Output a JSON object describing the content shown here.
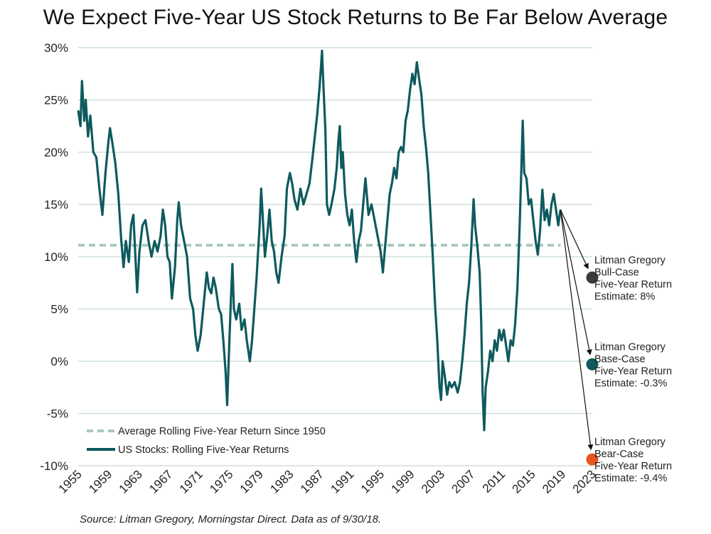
{
  "title": "We Expect Five-Year US Stock Returns to Be Far Below Average",
  "source": "Source: Litman Gregory, Morningstar Direct. Data as of 9/30/18.",
  "legend": {
    "average": "Average Rolling Five-Year Return Since 1950",
    "series": "US Stocks: Rolling Five-Year Returns"
  },
  "colors": {
    "line": "#0e5a5e",
    "average": "#a9c9bf",
    "grid": "#cfe0da",
    "bull": "#3b3b3b",
    "base": "#0e5a5e",
    "bear": "#e8531f"
  },
  "chart_data": {
    "type": "line",
    "title": "We Expect Five-Year US Stock Returns to Be Far Below Average",
    "xlabel": "",
    "ylabel": "",
    "ylim": [
      -10,
      30
    ],
    "xlim": [
      1955,
      2023
    ],
    "x_ticks": [
      "1955",
      "1959",
      "1963",
      "1967",
      "1971",
      "1975",
      "1979",
      "1983",
      "1987",
      "1991",
      "1995",
      "1999",
      "2003",
      "2007",
      "2011",
      "2015",
      "2019",
      "2023"
    ],
    "y_ticks": [
      "-10%",
      "-5%",
      "0%",
      "5%",
      "10%",
      "15%",
      "20%",
      "25%",
      "30%"
    ],
    "grid": "horizontal",
    "legend_position": "bottom-left",
    "average_line": {
      "name": "Average Rolling Five-Year Return Since 1950",
      "value": 11.1,
      "x_range": [
        1955,
        2018.8
      ]
    },
    "series": [
      {
        "name": "US Stocks: Rolling Five-Year Returns",
        "points": [
          [
            1955.0,
            24.0
          ],
          [
            1955.3,
            22.5
          ],
          [
            1955.5,
            26.8
          ],
          [
            1955.8,
            23.0
          ],
          [
            1956.0,
            25.0
          ],
          [
            1956.3,
            21.5
          ],
          [
            1956.6,
            23.5
          ],
          [
            1957.0,
            20.0
          ],
          [
            1957.4,
            19.5
          ],
          [
            1957.8,
            16.5
          ],
          [
            1958.2,
            14.0
          ],
          [
            1958.6,
            18.0
          ],
          [
            1959.0,
            21.0
          ],
          [
            1959.2,
            22.3
          ],
          [
            1959.5,
            21.0
          ],
          [
            1959.9,
            19.0
          ],
          [
            1960.3,
            16.0
          ],
          [
            1960.7,
            11.5
          ],
          [
            1961.0,
            9.0
          ],
          [
            1961.3,
            11.5
          ],
          [
            1961.7,
            9.5
          ],
          [
            1962.0,
            13.0
          ],
          [
            1962.3,
            14.0
          ],
          [
            1962.5,
            11.0
          ],
          [
            1962.8,
            6.6
          ],
          [
            1963.1,
            10.5
          ],
          [
            1963.5,
            13.0
          ],
          [
            1963.9,
            13.5
          ],
          [
            1964.3,
            11.5
          ],
          [
            1964.7,
            10.0
          ],
          [
            1965.1,
            11.5
          ],
          [
            1965.5,
            10.5
          ],
          [
            1965.9,
            12.0
          ],
          [
            1966.2,
            14.5
          ],
          [
            1966.5,
            13.0
          ],
          [
            1966.8,
            10.0
          ],
          [
            1967.1,
            9.5
          ],
          [
            1967.4,
            6.0
          ],
          [
            1967.8,
            9.0
          ],
          [
            1968.1,
            13.5
          ],
          [
            1968.3,
            15.2
          ],
          [
            1968.6,
            13.0
          ],
          [
            1969.0,
            11.5
          ],
          [
            1969.4,
            10.0
          ],
          [
            1969.8,
            6.0
          ],
          [
            1970.2,
            5.0
          ],
          [
            1970.5,
            2.5
          ],
          [
            1970.8,
            1.0
          ],
          [
            1971.2,
            2.5
          ],
          [
            1971.6,
            5.5
          ],
          [
            1972.0,
            8.5
          ],
          [
            1972.3,
            7.0
          ],
          [
            1972.6,
            6.5
          ],
          [
            1972.9,
            8.0
          ],
          [
            1973.2,
            7.0
          ],
          [
            1973.6,
            5.0
          ],
          [
            1973.9,
            4.5
          ],
          [
            1974.2,
            2.0
          ],
          [
            1974.5,
            -1.0
          ],
          [
            1974.7,
            -4.2
          ],
          [
            1974.9,
            0.0
          ],
          [
            1975.2,
            6.0
          ],
          [
            1975.4,
            9.3
          ],
          [
            1975.6,
            5.0
          ],
          [
            1975.9,
            4.0
          ],
          [
            1976.3,
            5.5
          ],
          [
            1976.6,
            3.0
          ],
          [
            1977.0,
            4.0
          ],
          [
            1977.3,
            2.0
          ],
          [
            1977.7,
            0.0
          ],
          [
            1978.0,
            2.0
          ],
          [
            1978.3,
            5.0
          ],
          [
            1978.6,
            8.0
          ],
          [
            1978.8,
            10.5
          ],
          [
            1979.0,
            13.0
          ],
          [
            1979.2,
            16.5
          ],
          [
            1979.4,
            14.0
          ],
          [
            1979.7,
            10.0
          ],
          [
            1980.0,
            12.0
          ],
          [
            1980.3,
            14.5
          ],
          [
            1980.6,
            11.5
          ],
          [
            1980.9,
            10.5
          ],
          [
            1981.2,
            8.5
          ],
          [
            1981.5,
            7.5
          ],
          [
            1981.9,
            10.0
          ],
          [
            1982.3,
            12.0
          ],
          [
            1982.6,
            16.5
          ],
          [
            1983.0,
            18.0
          ],
          [
            1983.3,
            17.0
          ],
          [
            1983.6,
            15.5
          ],
          [
            1984.0,
            14.5
          ],
          [
            1984.4,
            16.5
          ],
          [
            1984.8,
            15.0
          ],
          [
            1985.2,
            16.0
          ],
          [
            1985.6,
            17.0
          ],
          [
            1986.0,
            19.5
          ],
          [
            1986.3,
            21.5
          ],
          [
            1986.6,
            23.5
          ],
          [
            1986.9,
            26.0
          ],
          [
            1987.1,
            28.0
          ],
          [
            1987.25,
            29.7
          ],
          [
            1987.4,
            27.0
          ],
          [
            1987.7,
            22.0
          ],
          [
            1987.9,
            15.0
          ],
          [
            1988.2,
            14.0
          ],
          [
            1988.5,
            15.0
          ],
          [
            1988.9,
            16.5
          ],
          [
            1989.2,
            18.5
          ],
          [
            1989.4,
            21.0
          ],
          [
            1989.6,
            22.5
          ],
          [
            1989.8,
            18.5
          ],
          [
            1990.0,
            20.0
          ],
          [
            1990.3,
            16.0
          ],
          [
            1990.6,
            14.0
          ],
          [
            1990.9,
            13.0
          ],
          [
            1991.2,
            14.5
          ],
          [
            1991.5,
            11.5
          ],
          [
            1991.8,
            9.5
          ],
          [
            1992.1,
            11.5
          ],
          [
            1992.4,
            12.5
          ],
          [
            1992.7,
            15.0
          ],
          [
            1993.0,
            17.5
          ],
          [
            1993.4,
            14.0
          ],
          [
            1993.8,
            15.0
          ],
          [
            1994.2,
            13.5
          ],
          [
            1994.6,
            12.0
          ],
          [
            1995.0,
            10.5
          ],
          [
            1995.3,
            8.5
          ],
          [
            1995.6,
            11.0
          ],
          [
            1995.9,
            13.5
          ],
          [
            1996.2,
            16.0
          ],
          [
            1996.5,
            17.0
          ],
          [
            1996.8,
            18.5
          ],
          [
            1997.1,
            17.5
          ],
          [
            1997.4,
            20.0
          ],
          [
            1997.7,
            20.5
          ],
          [
            1998.0,
            20.0
          ],
          [
            1998.3,
            23.0
          ],
          [
            1998.6,
            24.0
          ],
          [
            1998.9,
            26.0
          ],
          [
            1999.2,
            27.5
          ],
          [
            1999.5,
            26.5
          ],
          [
            1999.8,
            28.6
          ],
          [
            2000.1,
            27.0
          ],
          [
            2000.4,
            25.5
          ],
          [
            2000.7,
            22.5
          ],
          [
            2001.0,
            20.5
          ],
          [
            2001.3,
            18.0
          ],
          [
            2001.6,
            14.0
          ],
          [
            2001.9,
            10.0
          ],
          [
            2002.2,
            5.5
          ],
          [
            2002.5,
            2.0
          ],
          [
            2002.8,
            -2.5
          ],
          [
            2003.0,
            -3.7
          ],
          [
            2003.2,
            0.0
          ],
          [
            2003.5,
            -1.5
          ],
          [
            2003.8,
            -3.2
          ],
          [
            2004.1,
            -2.0
          ],
          [
            2004.4,
            -2.5
          ],
          [
            2004.8,
            -2.0
          ],
          [
            2005.2,
            -3.0
          ],
          [
            2005.5,
            -2.0
          ],
          [
            2005.8,
            0.0
          ],
          [
            2006.1,
            2.5
          ],
          [
            2006.4,
            5.5
          ],
          [
            2006.7,
            7.5
          ],
          [
            2007.0,
            11.0
          ],
          [
            2007.3,
            15.5
          ],
          [
            2007.5,
            13.0
          ],
          [
            2007.8,
            11.0
          ],
          [
            2008.1,
            8.5
          ],
          [
            2008.3,
            4.0
          ],
          [
            2008.5,
            -3.0
          ],
          [
            2008.7,
            -6.6
          ],
          [
            2008.9,
            -2.5
          ],
          [
            2009.2,
            -1.0
          ],
          [
            2009.5,
            1.0
          ],
          [
            2009.8,
            0.0
          ],
          [
            2010.1,
            2.0
          ],
          [
            2010.4,
            1.0
          ],
          [
            2010.7,
            3.0
          ],
          [
            2011.0,
            2.0
          ],
          [
            2011.3,
            3.0
          ],
          [
            2011.6,
            1.5
          ],
          [
            2011.9,
            0.0
          ],
          [
            2012.2,
            2.0
          ],
          [
            2012.5,
            1.5
          ],
          [
            2012.8,
            3.5
          ],
          [
            2013.1,
            7.0
          ],
          [
            2013.4,
            13.0
          ],
          [
            2013.6,
            18.0
          ],
          [
            2013.8,
            23.0
          ],
          [
            2014.0,
            18.0
          ],
          [
            2014.3,
            17.5
          ],
          [
            2014.6,
            15.0
          ],
          [
            2014.9,
            15.5
          ],
          [
            2015.2,
            13.5
          ],
          [
            2015.5,
            11.5
          ],
          [
            2015.8,
            10.2
          ],
          [
            2016.1,
            12.5
          ],
          [
            2016.4,
            16.4
          ],
          [
            2016.7,
            13.5
          ],
          [
            2017.0,
            14.5
          ],
          [
            2017.3,
            13.0
          ],
          [
            2017.6,
            15.0
          ],
          [
            2017.9,
            16.0
          ],
          [
            2018.2,
            14.5
          ],
          [
            2018.5,
            13.0
          ],
          [
            2018.8,
            14.5
          ]
        ]
      }
    ],
    "estimates": [
      {
        "name": "bull",
        "value": 8.0,
        "x": 2023,
        "lines": [
          "Litman Gregory",
          "Bull-Case",
          "Five-Year Return",
          "Estimate: 8%"
        ]
      },
      {
        "name": "base",
        "value": -0.3,
        "x": 2023,
        "lines": [
          "Litman Gregory",
          "Base-Case",
          "Five-Year Return",
          "Estimate: -0.3%"
        ]
      },
      {
        "name": "bear",
        "value": -9.4,
        "x": 2023,
        "lines": [
          "Litman Gregory",
          "Bear-Case",
          "Five-Year Return",
          "Estimate: -9.4%"
        ]
      }
    ]
  }
}
